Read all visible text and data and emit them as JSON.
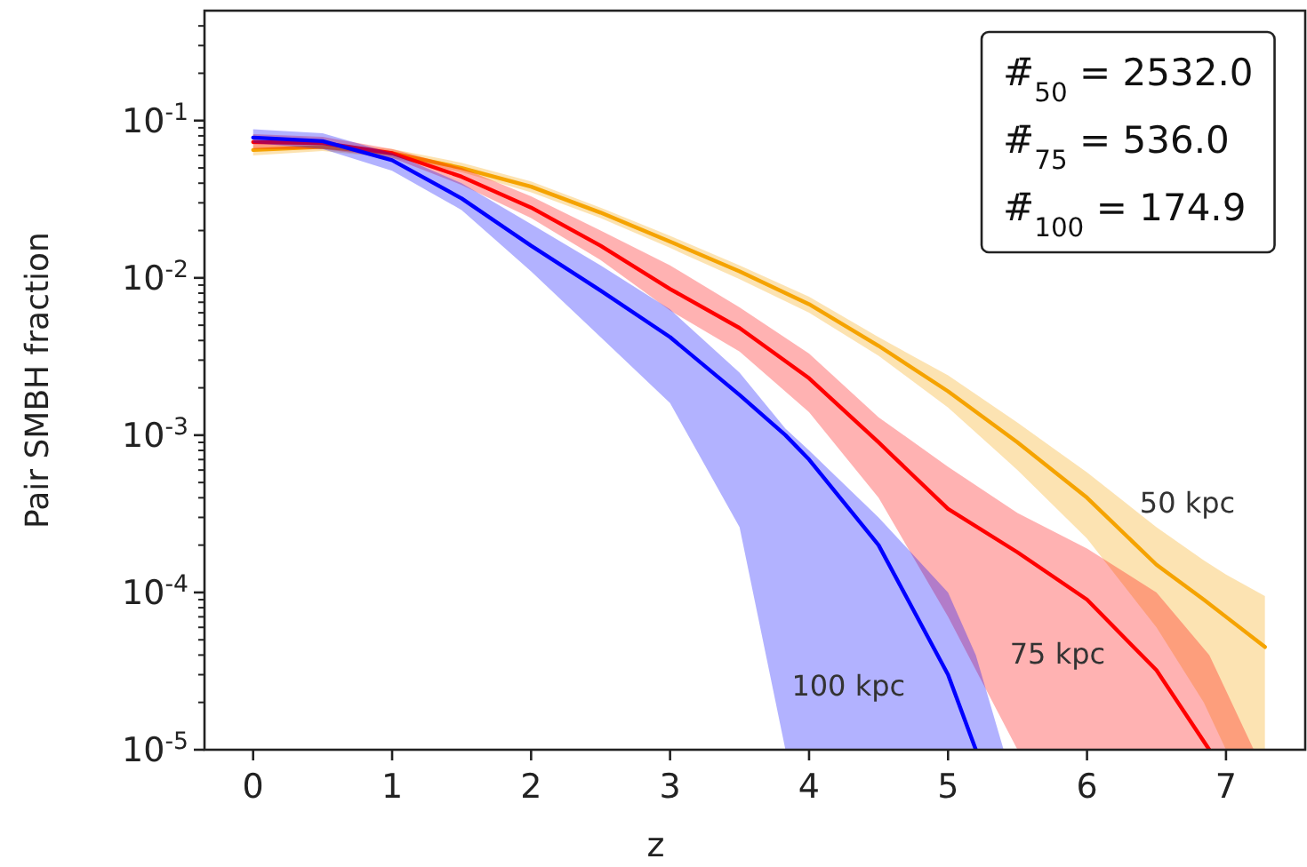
{
  "chart_data": {
    "type": "line",
    "xlabel": "z",
    "ylabel": "Pair SMBH fraction",
    "xlim": [
      -0.35,
      7.57
    ],
    "xticks": [
      0,
      1,
      2,
      3,
      4,
      5,
      6,
      7
    ],
    "ylim": [
      1e-05,
      0.5
    ],
    "yticks": [
      {
        "value": 1e-05,
        "label": "10$^{-5}$"
      },
      {
        "value": 2e-05,
        "label": null
      },
      {
        "value": 3e-05,
        "label": null
      },
      {
        "value": 4e-05,
        "label": null
      },
      {
        "value": 5e-05,
        "label": null
      },
      {
        "value": 6e-05,
        "label": null
      },
      {
        "value": 7e-05,
        "label": null
      },
      {
        "value": 8e-05,
        "label": null
      },
      {
        "value": 9e-05,
        "label": null
      },
      {
        "value": 0.0001,
        "label": "10$^{-4}$"
      },
      {
        "value": 0.0002,
        "label": null
      },
      {
        "value": 0.0003,
        "label": null
      },
      {
        "value": 0.0004,
        "label": null
      },
      {
        "value": 0.0005,
        "label": null
      },
      {
        "value": 0.0006,
        "label": null
      },
      {
        "value": 0.0007,
        "label": null
      },
      {
        "value": 0.0008,
        "label": null
      },
      {
        "value": 0.0009,
        "label": null
      },
      {
        "value": 0.001,
        "label": "10$^{-3}$"
      },
      {
        "value": 0.002,
        "label": null
      },
      {
        "value": 0.003,
        "label": null
      },
      {
        "value": 0.004,
        "label": null
      },
      {
        "value": 0.005,
        "label": null
      },
      {
        "value": 0.006,
        "label": null
      },
      {
        "value": 0.007,
        "label": null
      },
      {
        "value": 0.008,
        "label": null
      },
      {
        "value": 0.009,
        "label": null
      },
      {
        "value": 0.01,
        "label": "10$^{-2}$"
      },
      {
        "value": 0.02,
        "label": null
      },
      {
        "value": 0.03,
        "label": null
      },
      {
        "value": 0.04,
        "label": null
      },
      {
        "value": 0.05,
        "label": null
      },
      {
        "value": 0.06,
        "label": null
      },
      {
        "value": 0.07,
        "label": null
      },
      {
        "value": 0.08,
        "label": null
      },
      {
        "value": 0.09,
        "label": null
      },
      {
        "value": 0.1,
        "label": "10$^{-1}$"
      },
      {
        "value": 0.2,
        "label": null
      },
      {
        "value": 0.3,
        "label": null
      },
      {
        "value": 0.4,
        "label": null
      }
    ],
    "log": true,
    "grid": false,
    "line_style": "solid",
    "marker": "none",
    "annotations": [
      "#̄$_{50}$ = 2532.0",
      "#̄$_{75}$ = 536.0",
      "#̄$_{100}$ = 174.9"
    ],
    "series": [
      {
        "name": "50 kpc",
        "color": "#f5a300",
        "x": [
          0,
          0.5,
          1,
          1.5,
          2,
          2.5,
          3,
          3.5,
          4,
          4.5,
          5,
          5.5,
          6,
          6.5,
          6.84,
          7,
          7.28
        ],
        "values": [
          0.065,
          0.068,
          0.062,
          0.05,
          0.038,
          0.026,
          0.017,
          0.011,
          0.0068,
          0.0037,
          0.0019,
          0.0009,
          0.0004,
          0.00015,
          9e-05,
          7e-05,
          4.5e-05
        ],
        "lower": [
          0.06,
          0.064,
          0.058,
          0.047,
          0.035,
          0.024,
          0.0155,
          0.0098,
          0.006,
          0.0032,
          0.0015,
          0.0006,
          0.00022,
          6e-05,
          2e-05,
          1e-05,
          1e-05
        ],
        "upper": [
          0.07,
          0.072,
          0.066,
          0.054,
          0.041,
          0.028,
          0.0185,
          0.012,
          0.0076,
          0.0042,
          0.0024,
          0.0012,
          0.00058,
          0.00026,
          0.00016,
          0.00013,
          9.5e-05
        ]
      },
      {
        "name": "75 kpc",
        "color": "#ff0000",
        "x": [
          0,
          0.5,
          1,
          1.5,
          2,
          2.5,
          3,
          3.5,
          4,
          4.5,
          5,
          5.5,
          6,
          6.5,
          6.88,
          7.2
        ],
        "values": [
          0.073,
          0.072,
          0.062,
          0.044,
          0.028,
          0.016,
          0.0085,
          0.0048,
          0.0023,
          0.0009,
          0.00034,
          0.00018,
          9e-05,
          3.2e-05,
          1e-05,
          null
        ],
        "lower": [
          0.066,
          0.066,
          0.058,
          0.039,
          0.024,
          0.013,
          0.0062,
          0.0034,
          0.0014,
          0.0004,
          7e-05,
          1e-05,
          1e-05,
          1e-05,
          1e-05,
          1e-05
        ],
        "upper": [
          0.082,
          0.079,
          0.066,
          0.05,
          0.033,
          0.02,
          0.012,
          0.0065,
          0.0033,
          0.0013,
          0.00063,
          0.00032,
          0.00019,
          0.0001,
          4e-05,
          1e-05
        ]
      },
      {
        "name": "100 kpc",
        "color": "#0000ff",
        "x": [
          0,
          0.5,
          1,
          1.5,
          2,
          2.5,
          3,
          3.5,
          3.83,
          4,
          4.5,
          5,
          5.2,
          5.4
        ],
        "values": [
          0.078,
          0.074,
          0.056,
          0.032,
          0.016,
          0.0083,
          0.0042,
          0.0018,
          0.001,
          0.0007,
          0.0002,
          3e-05,
          1e-05,
          null
        ],
        "lower": [
          0.072,
          0.066,
          0.048,
          0.027,
          0.011,
          0.0042,
          0.0016,
          0.00026,
          1e-05,
          1e-05,
          1e-05,
          1e-05,
          1e-05,
          1e-05
        ],
        "upper": [
          0.088,
          0.083,
          0.062,
          0.04,
          0.022,
          0.012,
          0.0063,
          0.0025,
          0.0011,
          0.0008,
          0.0003,
          0.0001,
          4e-05,
          1e-05
        ]
      }
    ]
  }
}
